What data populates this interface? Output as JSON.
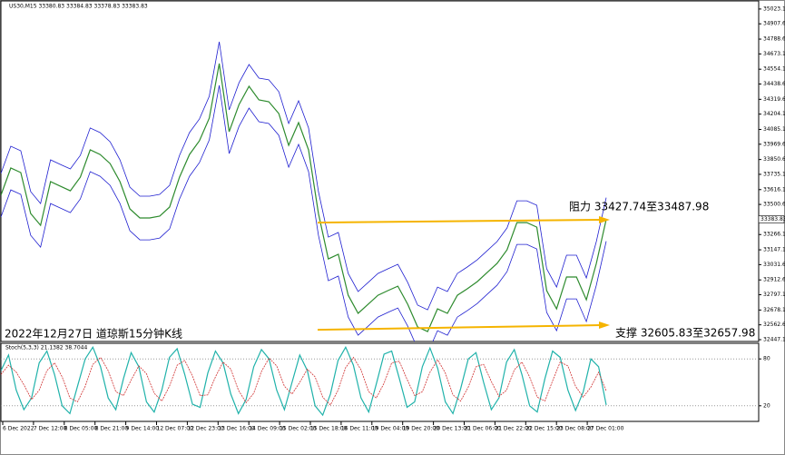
{
  "header": "US30,M15 33380.83 33384.83 33378.83 33383.83",
  "chart_data": [
    {
      "type": "line",
      "x_tick_labels": [
        "6 Dec 2022",
        "7 Dec 12:00",
        "8 Dec 05:00",
        "8 Dec 21:00",
        "9 Dec 14:00",
        "12 Dec 07:00",
        "12 Dec 23:00",
        "13 Dec 16:00",
        "14 Dec 09:00",
        "15 Dec 02:00",
        "15 Dec 18:00",
        "16 Dec 11:00",
        "19 Dec 04:00",
        "19 Dec 20:00",
        "20 Dec 13:00",
        "21 Dec 06:00",
        "21 Dec 22:00",
        "22 Dec 15:00",
        "23 Dec 08:00",
        "27 Dec 01:00"
      ],
      "series": [
        {
          "color": "#2e8b2e",
          "values": [
            33572,
            33784,
            33749,
            33430,
            33338,
            33678,
            33642,
            33607,
            33713,
            33926,
            33890,
            33819,
            33678,
            33466,
            33395,
            33395,
            33409,
            33480,
            33713,
            33890,
            33996,
            34173,
            34598,
            34067,
            34279,
            34421,
            34315,
            34301,
            34209,
            33961,
            34138,
            33926,
            33430,
            33076,
            33112,
            32793,
            32652,
            32722,
            32793,
            32829,
            32864,
            32722,
            32546,
            32510,
            32687,
            32652,
            32793,
            32843,
            32899,
            32970,
            33041,
            33147,
            33359,
            33359,
            33324,
            32829,
            32687,
            32935,
            32935,
            32758,
            33041,
            33384
          ]
        },
        {
          "color": "#1f1fd0",
          "values": [
            33742,
            33954,
            33919,
            33600,
            33508,
            33848,
            33812,
            33777,
            33883,
            34096,
            34060,
            33989,
            33848,
            33636,
            33565,
            33565,
            33579,
            33650,
            33883,
            34060,
            34166,
            34343,
            34768,
            34237,
            34449,
            34591,
            34485,
            34471,
            34379,
            34131,
            34308,
            34096,
            33600,
            33246,
            33282,
            32963,
            32822,
            32892,
            32963,
            32999,
            33034,
            32892,
            32716,
            32680,
            32857,
            32822,
            32963,
            33013,
            33069,
            33140,
            33211,
            33317,
            33529,
            33529,
            33494,
            32999,
            32857,
            33105,
            33105,
            32928,
            33211,
            33554
          ]
        },
        {
          "color": "#1f1fd0",
          "values": [
            33402,
            33614,
            33579,
            33260,
            33168,
            33508,
            33472,
            33437,
            33543,
            33756,
            33720,
            33649,
            33508,
            33296,
            33225,
            33225,
            33239,
            33310,
            33543,
            33720,
            33826,
            34003,
            34428,
            33897,
            34109,
            34251,
            34145,
            34131,
            34039,
            33791,
            33968,
            33756,
            33260,
            32906,
            32942,
            32623,
            32482,
            32552,
            32623,
            32659,
            32694,
            32552,
            32376,
            32340,
            32517,
            32482,
            32623,
            32673,
            32729,
            32800,
            32871,
            32977,
            33189,
            33189,
            33154,
            32659,
            32517,
            32765,
            32765,
            32588,
            32871,
            33214
          ]
        }
      ],
      "ylim": [
        32440,
        35072
      ],
      "yticks": [
        {
          "value": 35023.1,
          "label": "35023.10"
        },
        {
          "value": 34907.6,
          "label": "34907.60"
        },
        {
          "value": 34788.6,
          "label": "34788.60"
        },
        {
          "value": 34673.1,
          "label": "34673.10"
        },
        {
          "value": 34554.1,
          "label": "34554.10"
        },
        {
          "value": 34438.6,
          "label": "34438.60"
        },
        {
          "value": 34319.6,
          "label": "34319.60"
        },
        {
          "value": 34204.1,
          "label": "34204.10"
        },
        {
          "value": 34085.1,
          "label": "34085.10"
        },
        {
          "value": 33969.6,
          "label": "33969.60"
        },
        {
          "value": 33850.6,
          "label": "33850.60"
        },
        {
          "value": 33735.1,
          "label": "33735.10"
        },
        {
          "value": 33616.1,
          "label": "33616.10"
        },
        {
          "value": 33500.6,
          "label": "33500.60"
        },
        {
          "value": 33266.1,
          "label": "33266.10"
        },
        {
          "value": 33147.1,
          "label": "33147.10"
        },
        {
          "value": 33031.6,
          "label": "33031.60"
        },
        {
          "value": 32912.6,
          "label": "32912.60"
        },
        {
          "value": 32797.1,
          "label": "32797.10"
        },
        {
          "value": 32678.1,
          "label": "32678.10"
        },
        {
          "value": 32562.6,
          "label": "32562.60"
        },
        {
          "value": 32447.1,
          "label": "32447.10"
        }
      ],
      "last_price": 33383.83,
      "annotations": [
        {
          "text": "阻力 33427.74至33487.98",
          "line": [
            33359,
            33381
          ],
          "color": "#f5b400"
        },
        {
          "text": "支撑 32605.83至32657.98",
          "line": [
            32524,
            32560
          ],
          "color": "#f5b400"
        }
      ],
      "caption": "2022年12月27日 道琼斯15分钟K线"
    },
    {
      "type": "line",
      "title": "Stoch(5,3,3) 21.1382 38.7044",
      "series": [
        {
          "color": "#20b2aa",
          "values": [
            65,
            85,
            40,
            15,
            30,
            75,
            90,
            60,
            20,
            10,
            45,
            80,
            95,
            70,
            30,
            15,
            55,
            88,
            70,
            25,
            12,
            40,
            82,
            93,
            60,
            22,
            18,
            62,
            90,
            75,
            35,
            10,
            28,
            70,
            92,
            80,
            40,
            15,
            50,
            85,
            65,
            20,
            8,
            35,
            78,
            95,
            72,
            30,
            12,
            48,
            86,
            90,
            55,
            18,
            25,
            70,
            94,
            68,
            25,
            10,
            42,
            80,
            88,
            50,
            15,
            30,
            76,
            92,
            60,
            20,
            12,
            55,
            90,
            82,
            40,
            14,
            38,
            80,
            70,
            21
          ]
        },
        {
          "color": "#d03030",
          "dashed": true,
          "values": [
            60,
            72,
            63,
            47,
            28,
            40,
            65,
            75,
            57,
            30,
            25,
            45,
            73,
            82,
            65,
            38,
            33,
            53,
            71,
            61,
            36,
            26,
            45,
            72,
            78,
            58,
            33,
            34,
            57,
            76,
            67,
            40,
            24,
            36,
            64,
            81,
            71,
            45,
            35,
            50,
            67,
            57,
            31,
            21,
            40,
            69,
            82,
            66,
            38,
            30,
            49,
            75,
            77,
            54,
            33,
            38,
            63,
            79,
            62,
            34,
            26,
            44,
            70,
            73,
            51,
            32,
            40,
            66,
            76,
            57,
            31,
            26,
            52,
            76,
            71,
            45,
            31,
            44,
            63,
            39
          ]
        }
      ],
      "ylim": [
        0,
        100
      ],
      "yticks": [
        20,
        80
      ]
    }
  ]
}
